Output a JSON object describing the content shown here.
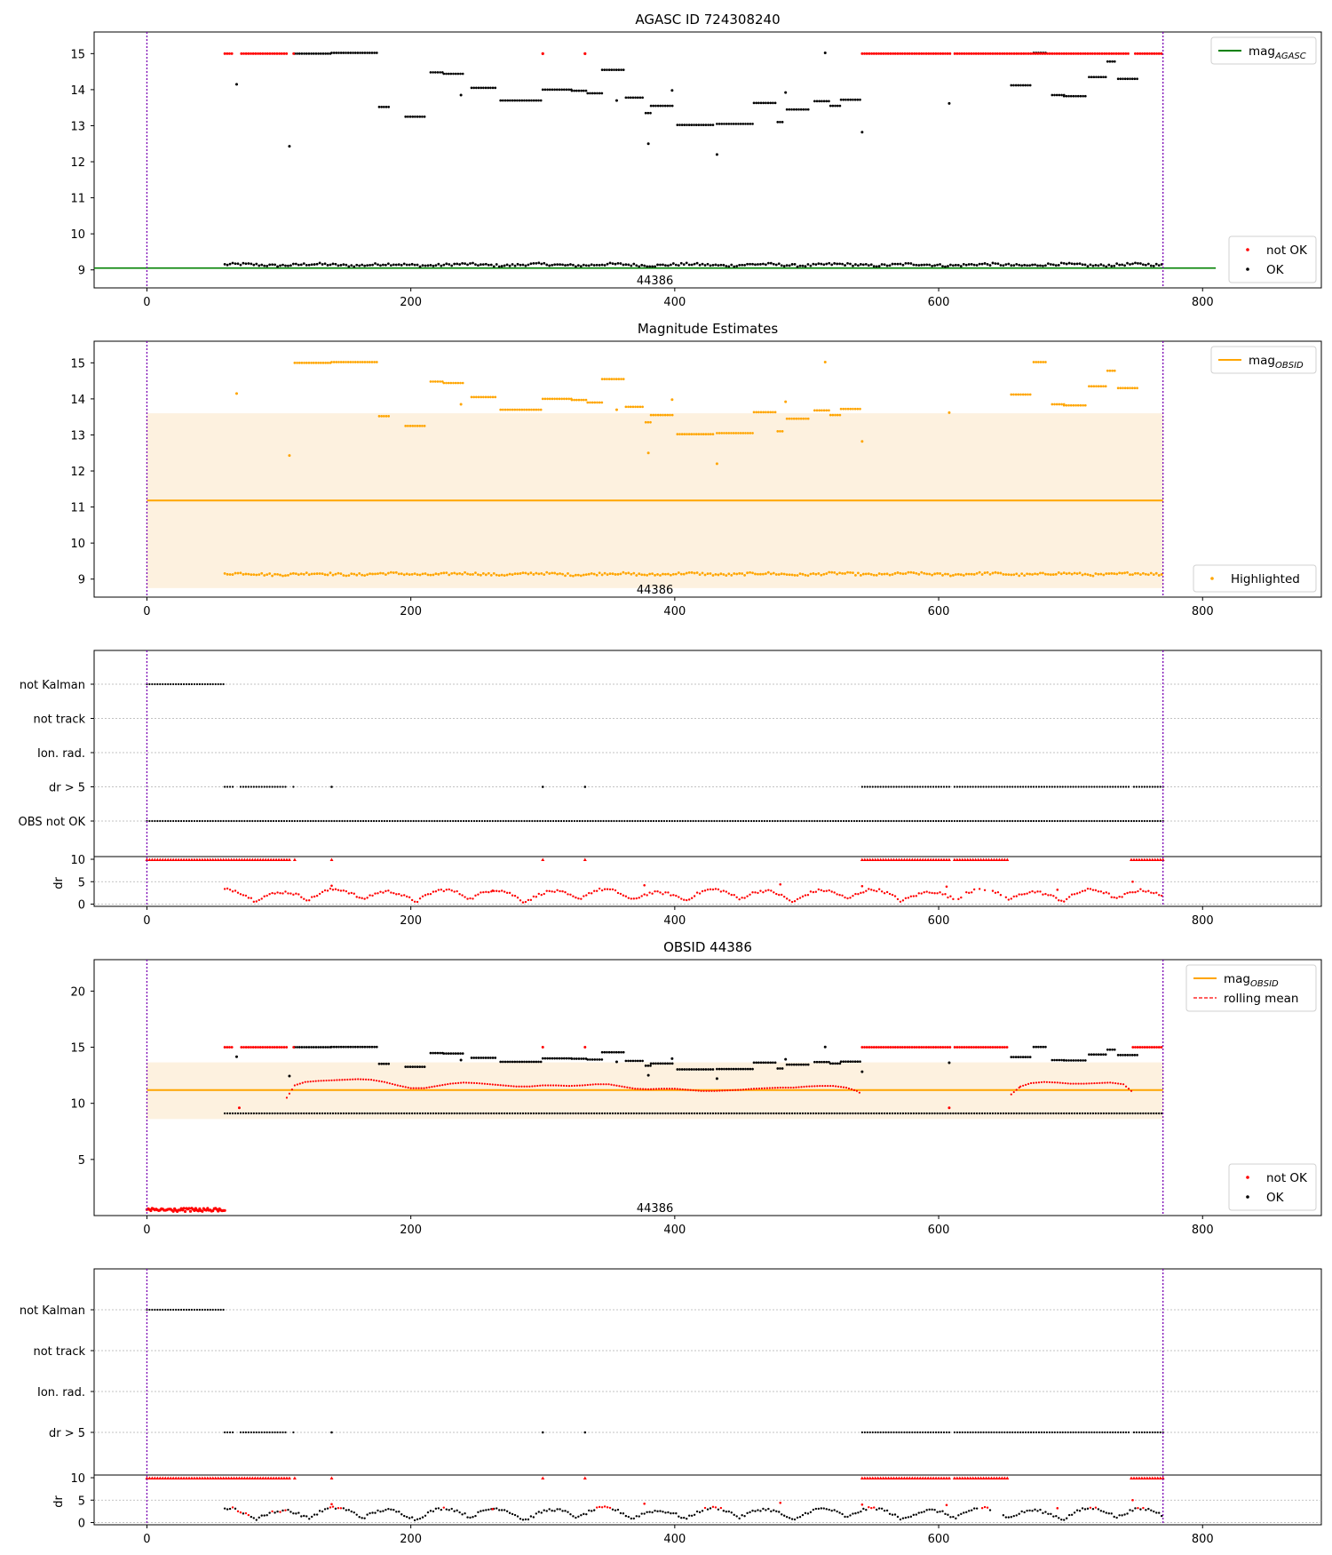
{
  "chart_data": [
    {
      "type": "scatter",
      "title": "AGASC ID 724308240",
      "xlim": [
        -40,
        890
      ],
      "ylim": [
        8.5,
        15.6
      ],
      "xticks": [
        0,
        200,
        400,
        600,
        800
      ],
      "yticks": [
        9,
        10,
        11,
        12,
        13,
        14,
        15
      ],
      "grid": false,
      "vlines": [
        0,
        770
      ],
      "obsid_label": {
        "text": "44386",
        "x": 385
      },
      "mag_agasc": {
        "value": 9.05,
        "x_range": [
          -40,
          810
        ]
      },
      "series": [
        {
          "name": "not OK",
          "color": "#ff0000",
          "segments": [
            [
              59,
              112,
              15.0
            ],
            [
              542,
              770,
              15.0
            ]
          ],
          "points": [
            [
              300,
              15.0
            ],
            [
              332,
              15.0
            ]
          ],
          "exclude": [
            [
              66,
              71
            ],
            [
              106,
              111
            ],
            [
              609,
              612
            ],
            [
              744,
              748
            ]
          ]
        },
        {
          "name": "OK",
          "color": "#000000",
          "baseline": {
            "x_range": [
              59,
              770
            ],
            "y": 9.14
          }
        }
      ],
      "legends": [
        {
          "position": "top-right",
          "entries": [
            {
              "label": "mag",
              "sub": "AGASC",
              "style": "line",
              "color": "#008000"
            }
          ]
        },
        {
          "position": "bottom-right",
          "entries": [
            {
              "label": "not OK",
              "style": "dot",
              "color": "#ff0000"
            },
            {
              "label": "OK",
              "style": "dot",
              "color": "#000000"
            }
          ]
        }
      ]
    },
    {
      "type": "scatter",
      "title": "Magnitude Estimates",
      "xlim": [
        -40,
        890
      ],
      "ylim": [
        8.5,
        15.6
      ],
      "xticks": [
        0,
        200,
        400,
        600,
        800
      ],
      "yticks": [
        9,
        10,
        11,
        12,
        13,
        14,
        15
      ],
      "grid": false,
      "vlines": [
        0,
        770
      ],
      "obsid_label": {
        "text": "44386",
        "x": 385
      },
      "mag_obsid": {
        "value": 11.18,
        "band": [
          8.75,
          13.6
        ],
        "x_range": [
          0,
          770
        ]
      },
      "series": [
        {
          "name": "Highlighted",
          "color": "#ffa500",
          "baseline": {
            "x_range": [
              59,
              770
            ],
            "y": 9.14
          }
        }
      ],
      "legends": [
        {
          "position": "top-right",
          "entries": [
            {
              "label": "mag",
              "sub": "OBSID",
              "style": "line",
              "color": "#ffa500"
            }
          ]
        },
        {
          "position": "bottom-right",
          "entries": [
            {
              "label": "Highlighted",
              "style": "dot",
              "color": "#ffa500"
            }
          ]
        }
      ]
    },
    {
      "type": "scatter",
      "xlim": [
        -40,
        890
      ],
      "xticks": [
        0,
        200,
        400,
        600,
        800
      ],
      "vlines": [
        0,
        770
      ],
      "flag_rows": [
        "not Kalman",
        "not track",
        "Ion. rad.",
        "dr > 5",
        "OBS not OK"
      ],
      "flags": {
        "not Kalman": [
          [
            0,
            59
          ]
        ],
        "dr > 5": [
          [
            59,
            112
          ],
          [
            140,
            140
          ],
          [
            300,
            300
          ],
          [
            332,
            332
          ],
          [
            542,
            770
          ]
        ],
        "OBS not OK": [
          [
            0,
            770
          ]
        ]
      },
      "dr": {
        "ylabel": "dr",
        "yticks": [
          0,
          5,
          10
        ],
        "ylim": [
          -0.5,
          10.6
        ],
        "clip": 10,
        "color": "#ff0000"
      }
    },
    {
      "type": "scatter",
      "title": "OBSID 44386",
      "xlim": [
        -40,
        890
      ],
      "ylim": [
        0,
        22.8
      ],
      "xticks": [
        0,
        200,
        400,
        600,
        800
      ],
      "yticks": [
        5,
        10,
        15,
        20
      ],
      "grid": false,
      "vlines": [
        0,
        770
      ],
      "obsid_label": {
        "text": "44386",
        "x": 385
      },
      "mag_obsid": {
        "value": 11.18,
        "band": [
          8.6,
          13.65
        ],
        "x_range": [
          0,
          770
        ]
      },
      "series": [
        {
          "name": "not OK",
          "color": "#ff0000",
          "low_segment": [
            0,
            59,
            0.5
          ]
        },
        {
          "name": "OK",
          "color": "#000000",
          "baseline": {
            "x_range": [
              59,
              770
            ],
            "y": 9.1
          }
        },
        {
          "name": "rolling mean",
          "color": "#ff0000",
          "x": [
            106,
            112,
            120,
            130,
            140,
            150,
            160,
            170,
            180,
            190,
            200,
            210,
            220,
            230,
            240,
            250,
            260,
            270,
            280,
            290,
            300,
            310,
            320,
            330,
            340,
            350,
            360,
            370,
            380,
            390,
            400,
            410,
            420,
            430,
            440,
            450,
            460,
            470,
            480,
            490,
            500,
            510,
            520,
            530,
            538,
            542
          ],
          "y": [
            10.5,
            11.6,
            11.9,
            12.0,
            12.05,
            12.1,
            12.15,
            12.1,
            11.9,
            11.6,
            11.35,
            11.35,
            11.55,
            11.75,
            11.85,
            11.8,
            11.7,
            11.6,
            11.5,
            11.5,
            11.6,
            11.6,
            11.55,
            11.6,
            11.7,
            11.7,
            11.5,
            11.3,
            11.25,
            11.3,
            11.3,
            11.2,
            11.1,
            11.1,
            11.15,
            11.2,
            11.3,
            11.35,
            11.4,
            11.4,
            11.5,
            11.55,
            11.55,
            11.4,
            11.1,
            10.8
          ]
        },
        {
          "name": "rolling mean tail",
          "color": "#ff0000",
          "x": [
            655,
            662,
            670,
            680,
            690,
            700,
            710,
            720,
            730,
            740,
            748
          ],
          "y": [
            10.8,
            11.5,
            11.8,
            11.9,
            11.85,
            11.75,
            11.75,
            11.8,
            11.85,
            11.7,
            10.9
          ]
        }
      ],
      "legends": [
        {
          "position": "top-right",
          "entries": [
            {
              "label": "mag",
              "sub": "OBSID",
              "style": "line",
              "color": "#ffa500"
            },
            {
              "label": "rolling mean",
              "style": "dashed",
              "color": "#ff0000"
            }
          ]
        },
        {
          "position": "bottom-right",
          "entries": [
            {
              "label": "not OK",
              "style": "dot",
              "color": "#ff0000"
            },
            {
              "label": "OK",
              "style": "dot",
              "color": "#000000"
            }
          ]
        }
      ]
    },
    {
      "type": "scatter",
      "xlim": [
        -40,
        890
      ],
      "xticks": [
        0,
        200,
        400,
        600,
        800
      ],
      "vlines": [
        0,
        770
      ],
      "flag_rows": [
        "not Kalman",
        "not track",
        "Ion. rad.",
        "dr > 5"
      ],
      "flags": {
        "not Kalman": [
          [
            0,
            59
          ]
        ],
        "dr > 5": [
          [
            59,
            112
          ],
          [
            140,
            140
          ],
          [
            300,
            300
          ],
          [
            332,
            332
          ],
          [
            542,
            770
          ]
        ]
      },
      "dr": {
        "ylabel": "dr",
        "yticks": [
          0,
          5,
          10
        ],
        "ylim": [
          -0.5,
          10.6
        ],
        "clip": 10,
        "color": "#000000"
      }
    }
  ]
}
